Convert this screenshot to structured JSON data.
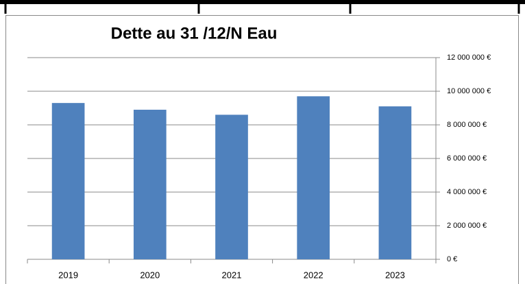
{
  "chart_data": {
    "type": "bar",
    "title": "Dette au 31 /12/N Eau",
    "categories": [
      "2019",
      "2020",
      "2021",
      "2022",
      "2023"
    ],
    "values": [
      9300000,
      8900000,
      8600000,
      9700000,
      9100000
    ],
    "color": "#4f81bd",
    "ylim": [
      0,
      12000000
    ],
    "yticks": [
      {
        "value": 0,
        "label": "0 €"
      },
      {
        "value": 2000000,
        "label": "2 000 000 €"
      },
      {
        "value": 4000000,
        "label": "4 000 000 €"
      },
      {
        "value": 6000000,
        "label": "6 000 000 €"
      },
      {
        "value": 8000000,
        "label": "8 000 000 €"
      },
      {
        "value": 10000000,
        "label": "10 000 000 €"
      },
      {
        "value": 12000000,
        "label": "12 000 000 €"
      }
    ],
    "grid": true,
    "y_axis_side": "right"
  }
}
